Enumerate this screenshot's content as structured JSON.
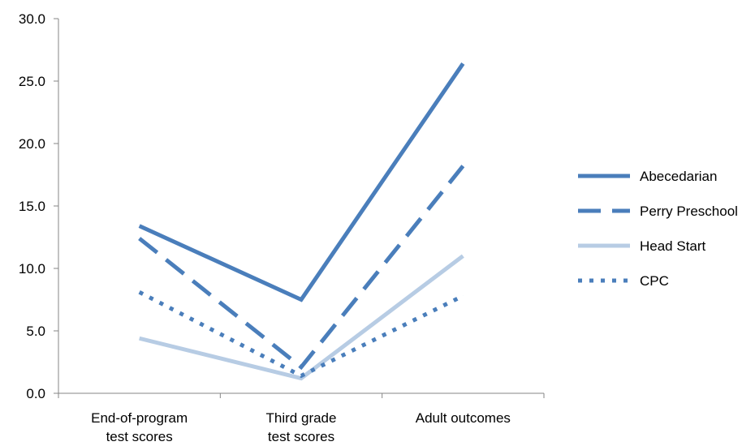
{
  "chart_data": {
    "type": "line",
    "categories": [
      [
        "End-of-program",
        "test scores"
      ],
      [
        "Third grade",
        "test scores"
      ],
      [
        "Adult outcomes"
      ]
    ],
    "y_ticks": [
      "0.0",
      "5.0",
      "10.0",
      "15.0",
      "20.0",
      "25.0",
      "30.0"
    ],
    "ylim": [
      0,
      30
    ],
    "grid": false,
    "legend_position": "right",
    "series": [
      {
        "name": "Abecedarian",
        "values": [
          13.4,
          7.5,
          26.4
        ],
        "color": "#4a7ebb",
        "style": "solid",
        "weight": "heavy"
      },
      {
        "name": "Perry Preschool",
        "values": [
          12.4,
          2.1,
          18.2
        ],
        "color": "#4a7ebb",
        "style": "dashed",
        "weight": "heavy"
      },
      {
        "name": "Head Start",
        "values": [
          4.4,
          1.2,
          11.0
        ],
        "color": "#b7cce4",
        "style": "solid",
        "weight": "heavy"
      },
      {
        "name": "CPC",
        "values": [
          8.1,
          1.4,
          7.8
        ],
        "color": "#4a7ebb",
        "style": "dotted",
        "weight": "heavy"
      }
    ]
  }
}
